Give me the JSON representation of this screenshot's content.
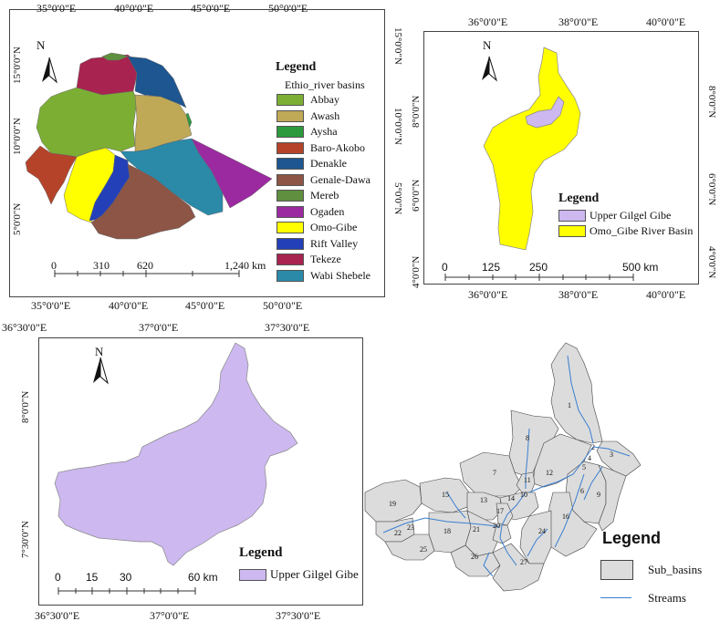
{
  "map_ethiopia": {
    "legend_title": "Legend",
    "legend_subtitle": "Ethio_river basins",
    "basins": [
      {
        "name": "Abbay",
        "color": "#7cae34"
      },
      {
        "name": "Awash",
        "color": "#bfa956"
      },
      {
        "name": "Aysha",
        "color": "#2c9a3c"
      },
      {
        "name": "Baro-Akobo",
        "color": "#b5432a"
      },
      {
        "name": "Denakle",
        "color": "#1d5690"
      },
      {
        "name": "Genale-Dawa",
        "color": "#8c5546"
      },
      {
        "name": "Mereb",
        "color": "#5f8f3f"
      },
      {
        "name": "Ogaden",
        "color": "#9b2aa0"
      },
      {
        "name": "Omo-Gibe",
        "color": "#ffff00"
      },
      {
        "name": "Rift Valley",
        "color": "#2440b8"
      },
      {
        "name": "Tekeze",
        "color": "#a8234f"
      },
      {
        "name": "Wabi Shebele",
        "color": "#2a8aa8"
      }
    ],
    "lon_labels_top": [
      "35°0'0\"E",
      "40°0'0\"E",
      "45°0'0\"E",
      "50°0'0\"E"
    ],
    "lon_labels_bottom": [
      "35°0'0\"E",
      "40°0'0\"E",
      "45°0'0\"E",
      "50°0'0\"E"
    ],
    "lat_labels": [
      "15°0'0\"N",
      "10°0'0\"N",
      "5°0'0\"N"
    ],
    "scale_labels": [
      "0",
      "310",
      "620",
      "1,240 km"
    ],
    "north": "N"
  },
  "map_omo": {
    "legend_title": "Legend",
    "items": [
      {
        "name": "Upper Gilgel Gibe",
        "color": "#cdb8f0"
      },
      {
        "name": "Omo_Gibe River Basin",
        "color": "#ffff00"
      }
    ],
    "lon_labels": [
      "36°0'0\"E",
      "38°0'0\"E",
      "40°0'0\"E"
    ],
    "lat_labels": [
      "8°0'0\"N",
      "6°0'0\"N",
      "4°0'0\"N"
    ],
    "scale_labels": [
      "0",
      "125",
      "250",
      "500 km"
    ],
    "north": "N"
  },
  "map_gilgel": {
    "legend_title": "Legend",
    "item": {
      "name": "Upper Gilgel Gibe",
      "color": "#cdb8f0"
    },
    "lon_labels_top": [
      "36°30'0\"E",
      "37°0'0\"E",
      "37°30'0\"E"
    ],
    "lon_labels_bottom": [
      "36°30'0\"E",
      "37°0'0\"E",
      "37°30'0\"E"
    ],
    "lat_labels": [
      "8°0'0\"N",
      "7°30'0\"N"
    ],
    "scale_labels": [
      "0",
      "15",
      "30",
      "60 km"
    ],
    "north": "N"
  },
  "map_subbasins": {
    "legend_title": "Legend",
    "items": [
      {
        "name": "Sub_basins",
        "color": "#dcdcdc"
      },
      {
        "name": "Streams",
        "color": "#3a7fd0"
      }
    ],
    "labels": [
      "1",
      "2",
      "3",
      "4",
      "5",
      "6",
      "7",
      "8",
      "9",
      "10",
      "11",
      "12",
      "13",
      "14",
      "15",
      "16",
      "17",
      "18",
      "19",
      "20",
      "21",
      "22",
      "23",
      "24",
      "25",
      "26",
      "27"
    ]
  }
}
